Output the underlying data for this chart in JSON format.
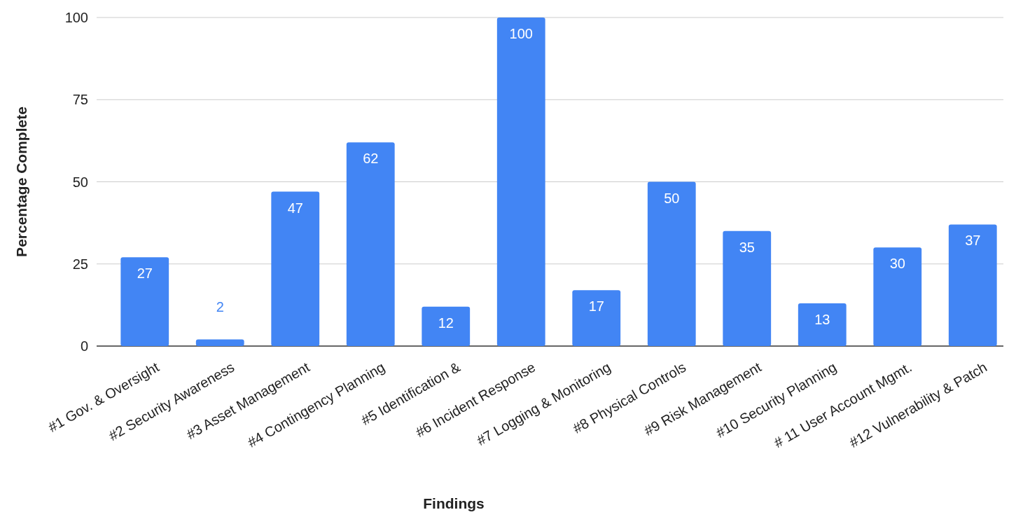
{
  "chart_data": {
    "type": "bar",
    "xlabel": "Findings",
    "ylabel": "Percentage Complete",
    "categories": [
      "#1 Gov. & Oversight",
      "#2 Security Awareness",
      "#3 Asset Management",
      "#4 Contingency Planning",
      "#5 Identification &",
      "#6 Incident Response",
      "#7 Logging & Monitoring",
      "#8 Physical Controls",
      "#9 Risk Management",
      "#10 Security Planning",
      "# 11 User Account Mgmt.",
      "#12 Vulnerability & Patch"
    ],
    "values": [
      27,
      2,
      47,
      62,
      12,
      100,
      17,
      50,
      35,
      13,
      30,
      37
    ],
    "color": "#4285f4",
    "ylim": [
      0,
      100
    ],
    "yticks": [
      0,
      25,
      50,
      75,
      100
    ],
    "grid": "y",
    "data_labels": true
  }
}
